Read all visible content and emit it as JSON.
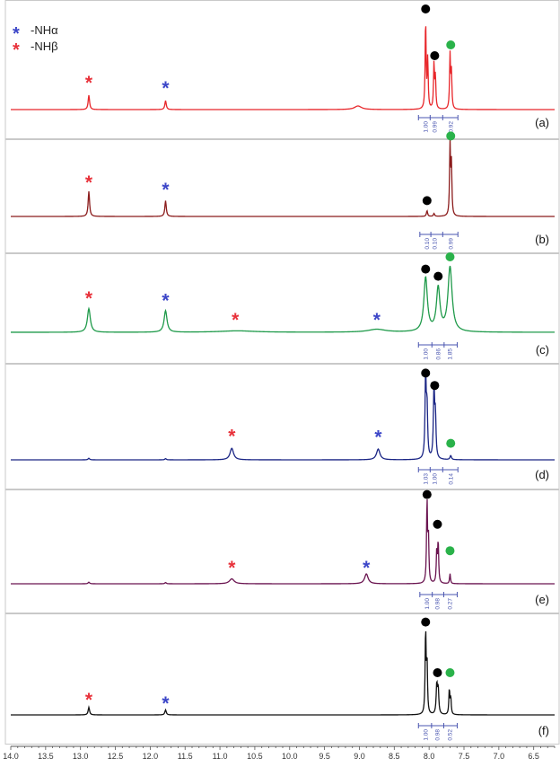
{
  "chart_data": {
    "type": "line",
    "title": "",
    "xlabel": "",
    "ylabel": "",
    "x_reversed": true,
    "xlim": [
      14.0,
      6.2
    ],
    "x_ticks": [
      "14.0",
      "13.5",
      "13.0",
      "12.5",
      "12.0",
      "11.5",
      "11.0",
      "10.5",
      "10.0",
      "9.5",
      "9.0",
      "8.5",
      "8.0",
      "7.5",
      "7.0",
      "6.5"
    ],
    "grid": false,
    "legend": {
      "position": "top-left",
      "entries": [
        {
          "symbol": "*",
          "color": "#3c46c8",
          "label": "-NHα"
        },
        {
          "symbol": "*",
          "color": "#e8313a",
          "label": "-NHβ"
        }
      ]
    },
    "marker_colors": {
      "star_alpha": "#3c46c8",
      "star_beta": "#e8313a",
      "dot_black": "#000000",
      "dot_green": "#2ab24a"
    },
    "integral_color": "#4a56b0",
    "series": [
      {
        "name": "(a)",
        "color": "#e8262a",
        "peaks": [
          {
            "ppm": 12.88,
            "height": 0.16,
            "width": 0.012
          },
          {
            "ppm": 11.78,
            "height": 0.1,
            "width": 0.012
          },
          {
            "ppm": 9.02,
            "height": 0.04,
            "width": 0.06
          },
          {
            "ppm": 8.05,
            "height": 1.0,
            "width": 0.008
          },
          {
            "ppm": 8.02,
            "height": 0.55,
            "width": 0.008
          },
          {
            "ppm": 7.93,
            "height": 0.5,
            "width": 0.008
          },
          {
            "ppm": 7.91,
            "height": 0.35,
            "width": 0.008
          },
          {
            "ppm": 7.7,
            "height": 0.6,
            "width": 0.008
          },
          {
            "ppm": 7.68,
            "height": 0.4,
            "width": 0.008
          }
        ],
        "markers": [
          {
            "ppm": 12.88,
            "type": "star_beta",
            "level": 0.32
          },
          {
            "ppm": 11.78,
            "type": "star_alpha",
            "level": 0.26
          },
          {
            "ppm": 8.05,
            "type": "dot_black",
            "level": 1.12
          },
          {
            "ppm": 7.92,
            "type": "dot_black",
            "level": 0.6
          },
          {
            "ppm": 7.69,
            "type": "dot_green",
            "level": 0.72
          }
        ],
        "integrals": [
          {
            "ppm": 8.05,
            "text": "1.00"
          },
          {
            "ppm": 7.92,
            "text": "0.99"
          },
          {
            "ppm": 7.69,
            "text": "0.92"
          }
        ]
      },
      {
        "name": "(b)",
        "color": "#8b1c1c",
        "peaks": [
          {
            "ppm": 12.88,
            "height": 0.35,
            "width": 0.012
          },
          {
            "ppm": 11.78,
            "height": 0.22,
            "width": 0.012
          },
          {
            "ppm": 8.03,
            "height": 0.08,
            "width": 0.01
          },
          {
            "ppm": 7.93,
            "height": 0.04,
            "width": 0.01
          },
          {
            "ppm": 7.7,
            "height": 1.0,
            "width": 0.008
          },
          {
            "ppm": 7.68,
            "height": 0.7,
            "width": 0.008
          }
        ],
        "markers": [
          {
            "ppm": 12.88,
            "type": "star_beta",
            "level": 0.5
          },
          {
            "ppm": 11.78,
            "type": "star_alpha",
            "level": 0.4
          },
          {
            "ppm": 8.03,
            "type": "dot_black",
            "level": 0.22
          },
          {
            "ppm": 7.69,
            "type": "dot_green",
            "level": 1.12
          }
        ],
        "integrals": [
          {
            "ppm": 8.03,
            "text": "0.10"
          },
          {
            "ppm": 7.92,
            "text": "0.10"
          },
          {
            "ppm": 7.69,
            "text": "0.99"
          }
        ]
      },
      {
        "name": "(c)",
        "color": "#1f9a4a",
        "peaks": [
          {
            "ppm": 12.88,
            "height": 0.33,
            "width": 0.025
          },
          {
            "ppm": 11.78,
            "height": 0.3,
            "width": 0.025
          },
          {
            "ppm": 10.75,
            "height": 0.02,
            "width": 0.3
          },
          {
            "ppm": 8.75,
            "height": 0.04,
            "width": 0.15
          },
          {
            "ppm": 8.05,
            "height": 0.75,
            "width": 0.03
          },
          {
            "ppm": 7.87,
            "height": 0.6,
            "width": 0.03
          },
          {
            "ppm": 7.7,
            "height": 0.9,
            "width": 0.035
          }
        ],
        "markers": [
          {
            "ppm": 12.88,
            "type": "star_beta",
            "level": 0.5
          },
          {
            "ppm": 11.78,
            "type": "star_alpha",
            "level": 0.47
          },
          {
            "ppm": 10.78,
            "type": "star_beta",
            "level": 0.2
          },
          {
            "ppm": 8.75,
            "type": "star_alpha",
            "level": 0.2
          },
          {
            "ppm": 8.05,
            "type": "dot_black",
            "level": 0.88
          },
          {
            "ppm": 7.87,
            "type": "dot_black",
            "level": 0.78
          },
          {
            "ppm": 7.7,
            "type": "dot_green",
            "level": 1.05
          }
        ],
        "integrals": [
          {
            "ppm": 8.05,
            "text": "1.00"
          },
          {
            "ppm": 7.87,
            "text": "0.86"
          },
          {
            "ppm": 7.7,
            "text": "1.85"
          }
        ]
      },
      {
        "name": "(d)",
        "color": "#1a2585",
        "peaks": [
          {
            "ppm": 12.88,
            "height": 0.02,
            "width": 0.012
          },
          {
            "ppm": 11.78,
            "height": 0.015,
            "width": 0.012
          },
          {
            "ppm": 10.83,
            "height": 0.14,
            "width": 0.03
          },
          {
            "ppm": 8.73,
            "height": 0.13,
            "width": 0.03
          },
          {
            "ppm": 8.05,
            "height": 1.0,
            "width": 0.01
          },
          {
            "ppm": 8.03,
            "height": 0.6,
            "width": 0.01
          },
          {
            "ppm": 7.93,
            "height": 0.85,
            "width": 0.01
          },
          {
            "ppm": 7.91,
            "height": 0.5,
            "width": 0.01
          },
          {
            "ppm": 7.69,
            "height": 0.05,
            "width": 0.012
          }
        ],
        "markers": [
          {
            "ppm": 10.83,
            "type": "star_beta",
            "level": 0.31
          },
          {
            "ppm": 8.73,
            "type": "star_alpha",
            "level": 0.3
          },
          {
            "ppm": 8.05,
            "type": "dot_black",
            "level": 1.05
          },
          {
            "ppm": 7.92,
            "type": "dot_black",
            "level": 0.9
          },
          {
            "ppm": 7.69,
            "type": "dot_green",
            "level": 0.2
          }
        ],
        "integrals": [
          {
            "ppm": 8.05,
            "text": "1.03"
          },
          {
            "ppm": 7.92,
            "text": "1.00"
          },
          {
            "ppm": 7.69,
            "text": "0.14"
          }
        ]
      },
      {
        "name": "(e)",
        "color": "#6a1450",
        "peaks": [
          {
            "ppm": 12.88,
            "height": 0.02,
            "width": 0.012
          },
          {
            "ppm": 11.78,
            "height": 0.015,
            "width": 0.012
          },
          {
            "ppm": 10.83,
            "height": 0.06,
            "width": 0.04
          },
          {
            "ppm": 8.9,
            "height": 0.12,
            "width": 0.03
          },
          {
            "ppm": 8.03,
            "height": 1.0,
            "width": 0.008
          },
          {
            "ppm": 8.01,
            "height": 0.55,
            "width": 0.008
          },
          {
            "ppm": 7.89,
            "height": 0.4,
            "width": 0.008
          },
          {
            "ppm": 7.87,
            "height": 0.5,
            "width": 0.008
          },
          {
            "ppm": 7.7,
            "height": 0.12,
            "width": 0.008
          }
        ],
        "markers": [
          {
            "ppm": 10.83,
            "type": "star_beta",
            "level": 0.22
          },
          {
            "ppm": 8.9,
            "type": "star_alpha",
            "level": 0.22
          },
          {
            "ppm": 8.03,
            "type": "dot_black",
            "level": 1.08
          },
          {
            "ppm": 7.88,
            "type": "dot_black",
            "level": 0.72
          },
          {
            "ppm": 7.7,
            "type": "dot_green",
            "level": 0.4
          }
        ],
        "integrals": [
          {
            "ppm": 8.03,
            "text": "1.00"
          },
          {
            "ppm": 7.88,
            "text": "0.98"
          },
          {
            "ppm": 7.7,
            "text": "0.27"
          }
        ]
      },
      {
        "name": "(f)",
        "color": "#111111",
        "peaks": [
          {
            "ppm": 12.88,
            "height": 0.09,
            "width": 0.012
          },
          {
            "ppm": 11.78,
            "height": 0.06,
            "width": 0.012
          },
          {
            "ppm": 8.05,
            "height": 1.0,
            "width": 0.008
          },
          {
            "ppm": 8.03,
            "height": 0.6,
            "width": 0.008
          },
          {
            "ppm": 7.89,
            "height": 0.35,
            "width": 0.01
          },
          {
            "ppm": 7.87,
            "height": 0.3,
            "width": 0.01
          },
          {
            "ppm": 7.71,
            "height": 0.3,
            "width": 0.008
          },
          {
            "ppm": 7.69,
            "height": 0.2,
            "width": 0.008
          }
        ],
        "markers": [
          {
            "ppm": 12.88,
            "type": "star_beta",
            "level": 0.2
          },
          {
            "ppm": 11.78,
            "type": "star_alpha",
            "level": 0.16
          },
          {
            "ppm": 8.05,
            "type": "dot_black",
            "level": 1.1
          },
          {
            "ppm": 7.88,
            "type": "dot_black",
            "level": 0.5
          },
          {
            "ppm": 7.7,
            "type": "dot_green",
            "level": 0.5
          }
        ],
        "integrals": [
          {
            "ppm": 8.05,
            "text": "1.00"
          },
          {
            "ppm": 7.88,
            "text": "0.98"
          },
          {
            "ppm": 7.7,
            "text": "0.52"
          }
        ]
      }
    ]
  }
}
